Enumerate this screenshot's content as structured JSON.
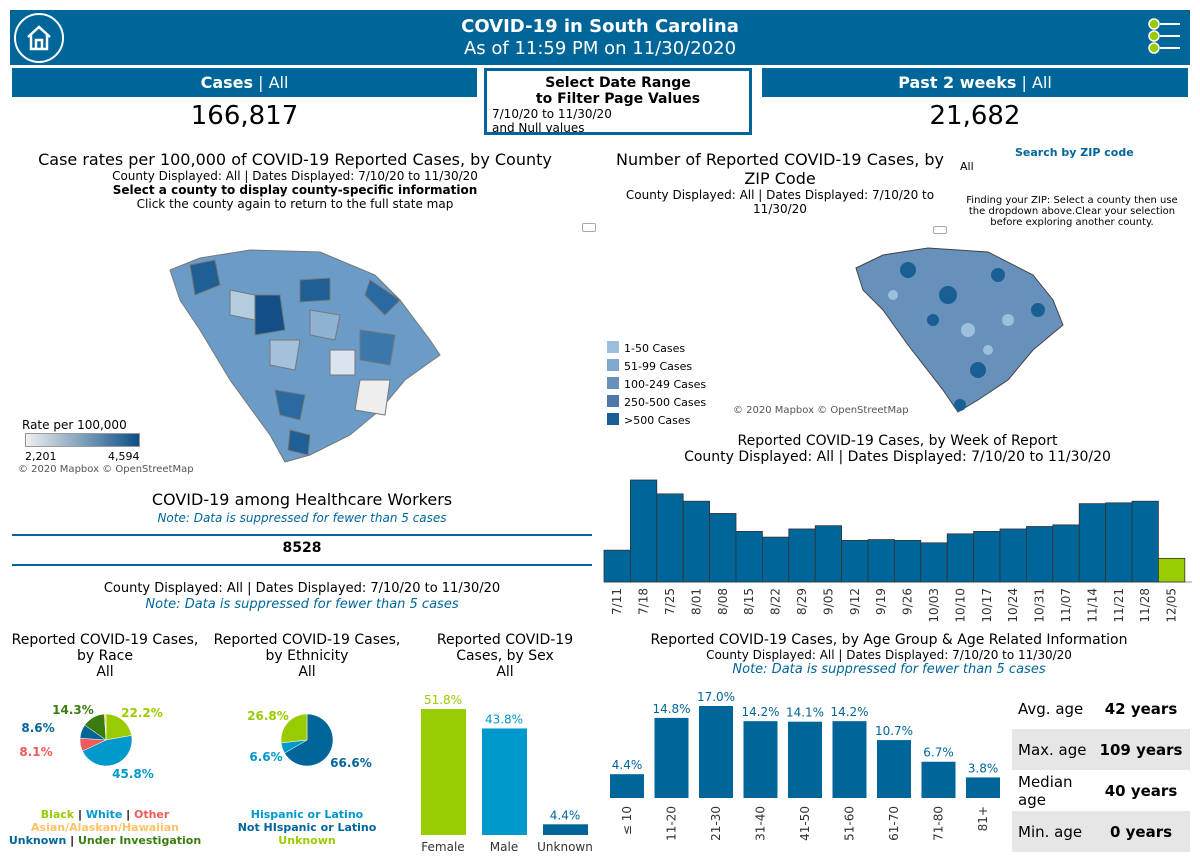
{
  "header": {
    "title": "COVID-19 in South Carolina",
    "subtitle": "As of 11:59 PM on 11/30/2020",
    "home_icon": "home-icon",
    "menu_icon": "menu-icon"
  },
  "cases": {
    "label": "Cases",
    "filter": "All",
    "value": "166,817"
  },
  "date_filter": {
    "title1": "Select Date Range",
    "title2": "to Filter Page Values",
    "range": "7/10/20 to 11/30/20",
    "extra": "and Null values"
  },
  "past2": {
    "label": "Past 2 weeks",
    "filter": "All",
    "value": "21,682"
  },
  "county_map": {
    "title": "Case rates per 100,000 of COVID-19 Reported Cases, by County",
    "displayed": "County Displayed: All | Dates Displayed: 7/10/20 to 11/30/20",
    "instruction": "Select a county to display county-specific information",
    "instruction2": "Click the county again to return to the full state map",
    "legend_title": "Rate per 100,000",
    "legend_min": "2,201",
    "legend_max": "4,594",
    "attribution": "© 2020 Mapbox © OpenStreetMap"
  },
  "zip_map": {
    "title1": "Number of Reported COVID-19 Cases, by",
    "title2": "ZIP Code",
    "displayed": "County Displayed: All | Dates Displayed: 7/10/20 to",
    "displayed2": "11/30/20",
    "search_label": "Search by ZIP code",
    "search_value": "All",
    "help": "Finding your ZIP: Select a county then use the dropdown above.Clear your selection before exploring another county.",
    "legend": [
      {
        "label": "1-50 Cases",
        "color": "#9cc0dc"
      },
      {
        "label": "51-99 Cases",
        "color": "#7ea8cd"
      },
      {
        "label": "100-249 Cases",
        "color": "#6790bb"
      },
      {
        "label": "250-500 Cases",
        "color": "#4f78a8"
      },
      {
        "label": ">500 Cases",
        "color": "#1a5f94"
      }
    ],
    "attribution": "© 2020 Mapbox © OpenStreetMap"
  },
  "healthcare": {
    "title": "COVID-19 among Healthcare Workers",
    "note": "Note: Data is suppressed for fewer than 5 cases",
    "value": "8528",
    "displayed": "County Displayed: All | Dates Displayed: 7/10/20 to 11/30/20",
    "note2": "Note: Data is suppressed for fewer than 5 cases"
  },
  "chart_data": [
    {
      "type": "bar",
      "title": "Reported COVID-19 Cases, by Week of Report",
      "subtitle": "County Displayed: All | Dates Displayed: 7/10/20 to 11/30/20",
      "categories": [
        "7/11",
        "7/18",
        "7/25",
        "8/01",
        "8/08",
        "8/15",
        "8/22",
        "8/29",
        "9/05",
        "9/12",
        "9/19",
        "9/26",
        "10/03",
        "10/10",
        "10/17",
        "10/24",
        "10/31",
        "11/07",
        "11/14",
        "11/21",
        "11/28",
        "12/05"
      ],
      "values": [
        3900,
        12500,
        10800,
        9900,
        8400,
        6200,
        5500,
        6500,
        6900,
        5100,
        5200,
        5100,
        4800,
        5900,
        6200,
        6500,
        6800,
        7000,
        9600,
        9700,
        9900,
        2900
      ],
      "colors": {
        "default": "#00669a",
        "last": "#99cc00"
      }
    },
    {
      "type": "pie",
      "title": "Reported COVID-19 Cases, by Race",
      "filter": "All",
      "slices": [
        {
          "label": "Black",
          "value": 22.2,
          "color": "#99cc00"
        },
        {
          "label": "White",
          "value": 45.8,
          "color": "#0099cc"
        },
        {
          "label": "Other",
          "value": 8.1,
          "color": "#f05a5a"
        },
        {
          "label": "Unknown",
          "value": 8.6,
          "color": "#00669a"
        },
        {
          "label": "Under Investigation",
          "value": 14.3,
          "color": "#3a7d0f"
        },
        {
          "label": "Asian/Alaskan/Hawaiian",
          "value": 1.0,
          "color": "#ffc266"
        }
      ],
      "labels": [
        "22.2%",
        "45.8%",
        "8.1%",
        "8.6%",
        "14.3%"
      ]
    },
    {
      "type": "pie",
      "title": "Reported COVID-19 Cases, by Ethnicity",
      "filter": "All",
      "slices": [
        {
          "label": "Not HIspanic or Latino",
          "value": 66.6,
          "color": "#00669a"
        },
        {
          "label": "Hispanic or Latino",
          "value": 6.6,
          "color": "#0099cc"
        },
        {
          "label": "Unknown",
          "value": 26.8,
          "color": "#99cc00"
        }
      ],
      "labels": [
        "66.6%",
        "6.6%",
        "26.8%"
      ]
    },
    {
      "type": "bar",
      "title": "Reported COVID-19 Cases, by Sex",
      "filter": "All",
      "categories": [
        "Female",
        "Male",
        "Unknown"
      ],
      "values": [
        51.8,
        43.8,
        4.4
      ],
      "labels": [
        "51.8%",
        "43.8%",
        "4.4%"
      ],
      "colors": [
        "#99cc00",
        "#0099cc",
        "#00669a"
      ]
    },
    {
      "type": "bar",
      "title": "Reported COVID-19 Cases, by Age Group & Age Related Information",
      "subtitle": "County Displayed: All | Dates Displayed: 7/10/20 to 11/30/20",
      "note": "Note: Data is suppressed for fewer than 5 cases",
      "categories": [
        "≤ 10",
        "11-20",
        "21-30",
        "31-40",
        "41-50",
        "51-60",
        "61-70",
        "71-80",
        "81+"
      ],
      "values": [
        4.4,
        14.8,
        17.0,
        14.2,
        14.1,
        14.2,
        10.7,
        6.7,
        3.8
      ],
      "labels": [
        "4.4%",
        "14.8%",
        "17.0%",
        "14.2%",
        "14.1%",
        "14.2%",
        "10.7%",
        "6.7%",
        "3.8%"
      ]
    }
  ],
  "race_legend": {
    "black": "Black",
    "white": "White",
    "other": "Other",
    "asian": "Asian/Alaskan/Hawaiian",
    "unknown": "Unknown",
    "ui": "Under Investigation",
    "sep": "|"
  },
  "eth_legend": {
    "hisp": "Hispanic or Latino",
    "not": "Not HIspanic or Latino",
    "unk": "Unknown"
  },
  "titles": {
    "race1": "Reported COVID-19 Cases,",
    "race2": "by Race",
    "eth1": "Reported COVID-19 Cases,",
    "eth2": "by Ethnicity",
    "sex1": "Reported COVID-19",
    "sex2": "Cases, by Sex",
    "all": "All"
  },
  "age_stats": [
    {
      "k": "Avg. age",
      "v": "42 years"
    },
    {
      "k": "Max. age",
      "v": "109 years"
    },
    {
      "k": "Median age",
      "v": "40 years"
    },
    {
      "k": "Min. age",
      "v": "0 years"
    }
  ]
}
